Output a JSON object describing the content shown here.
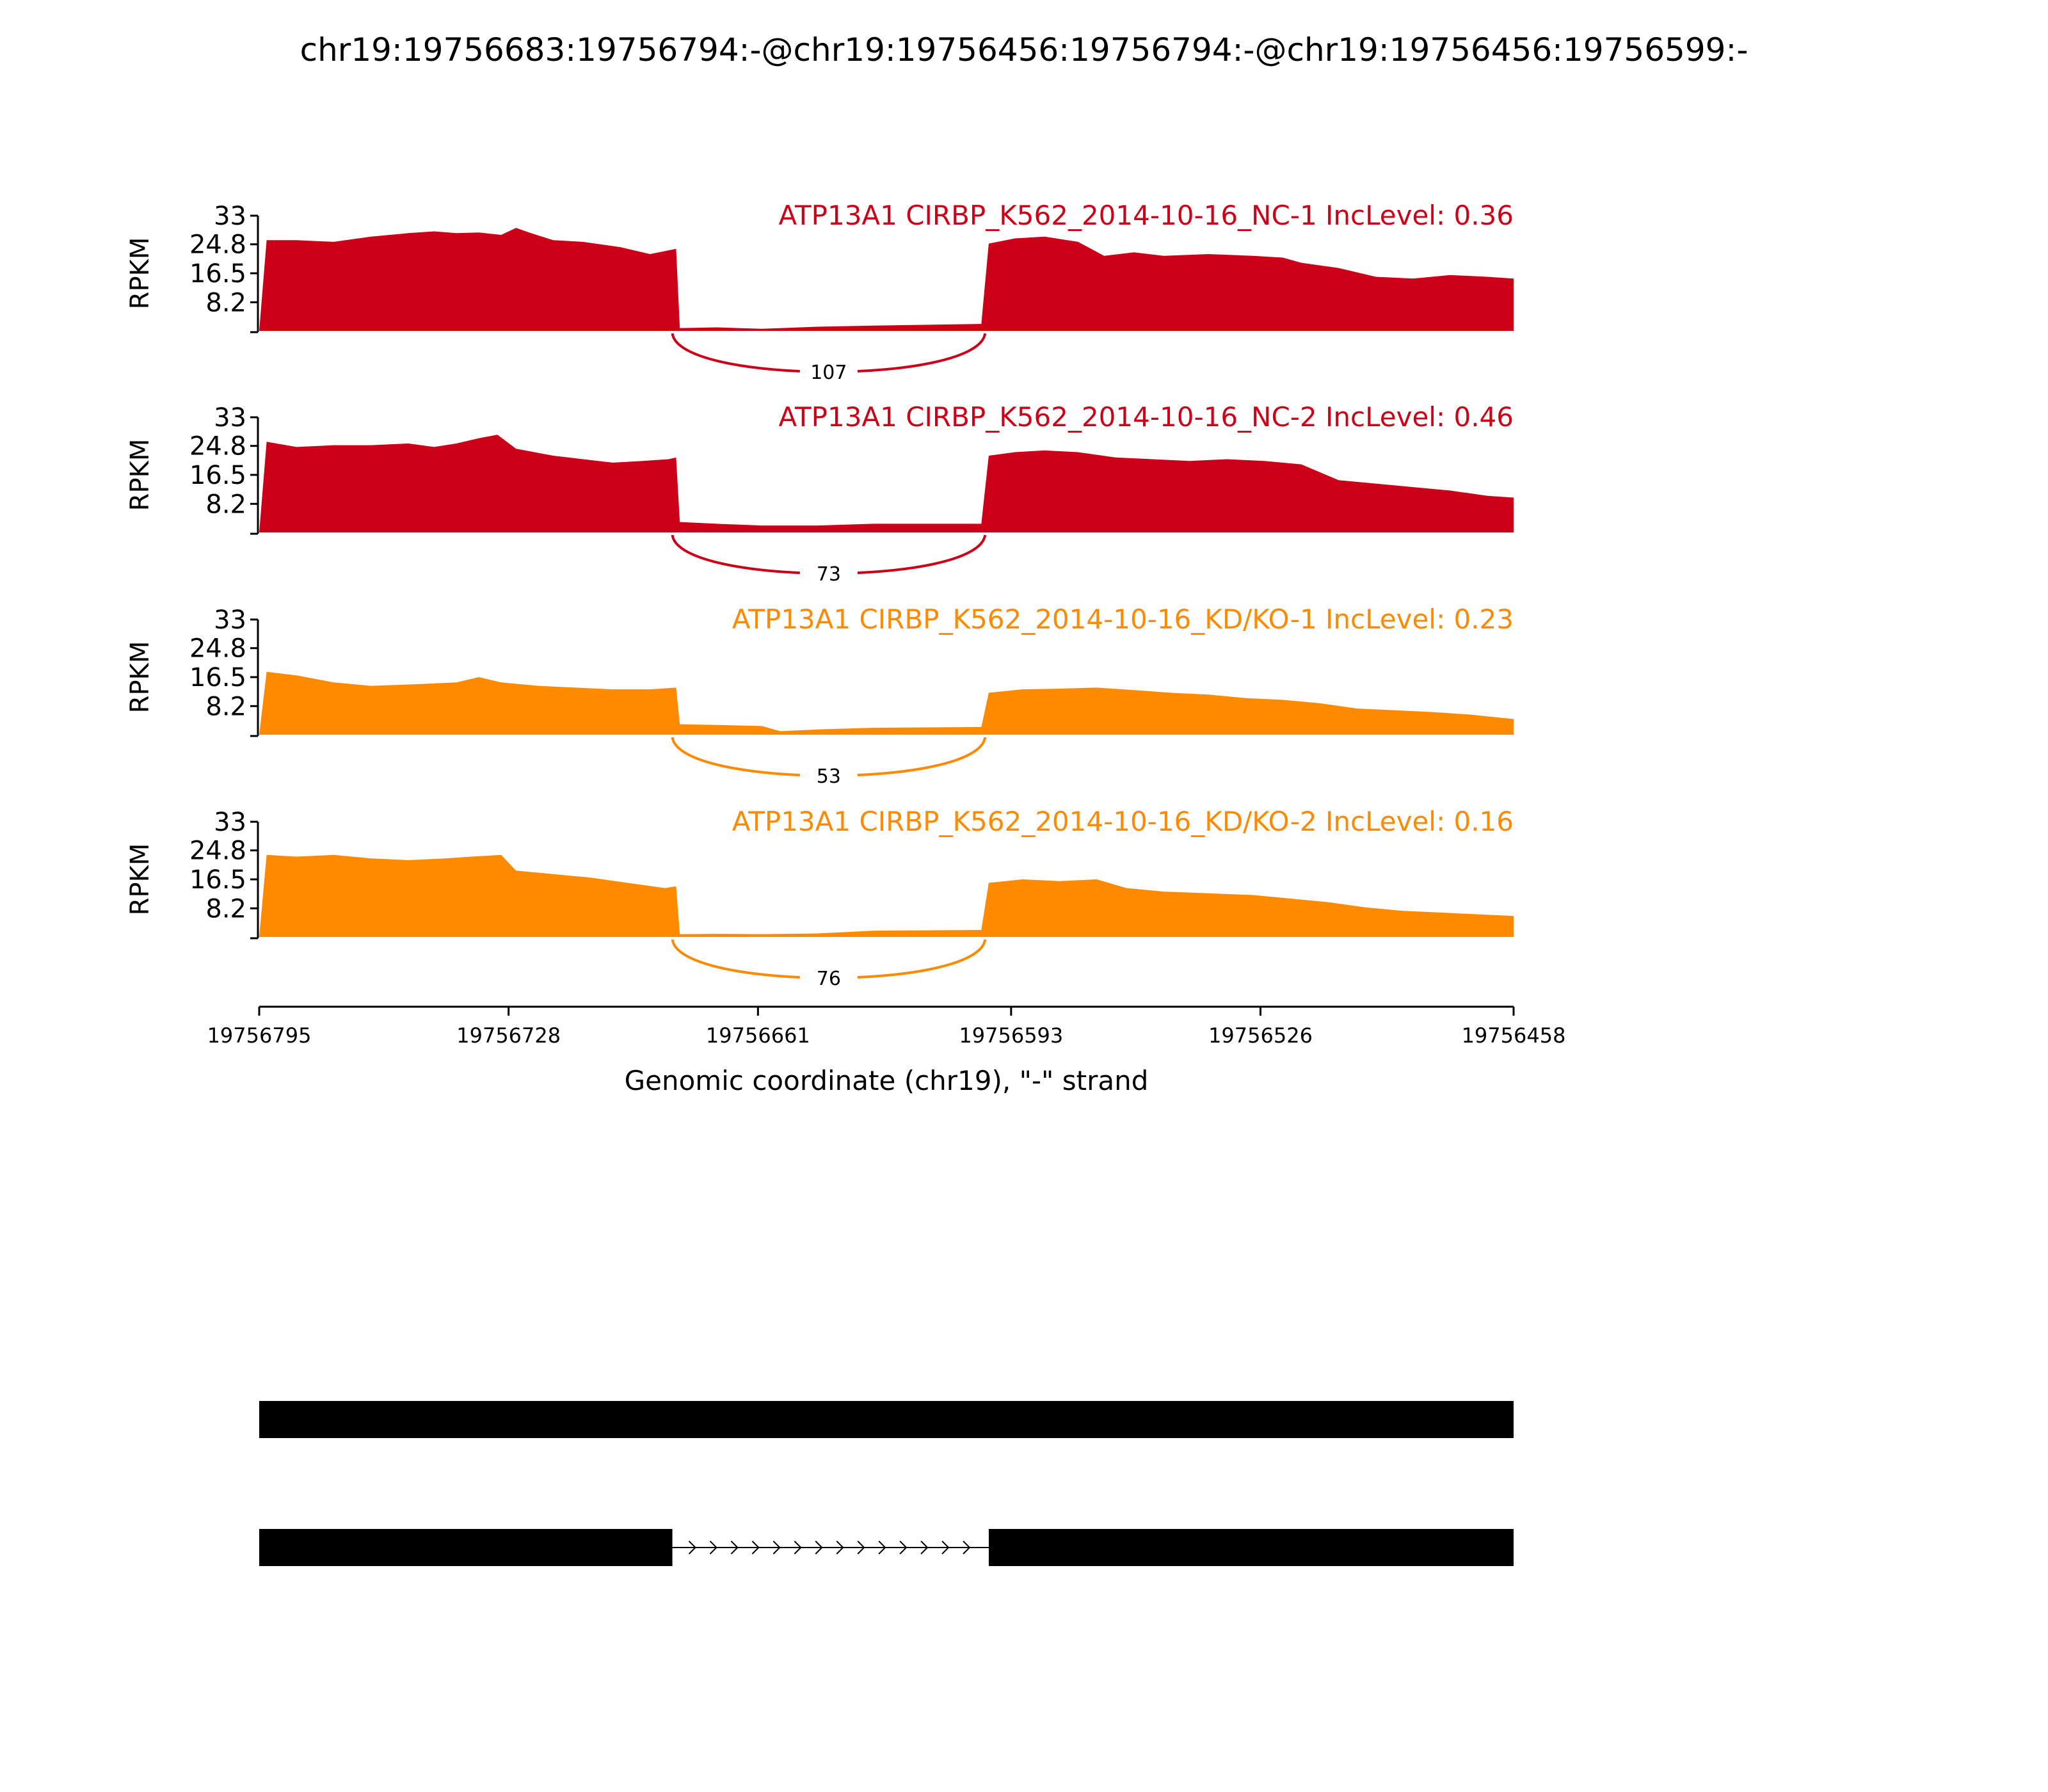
{
  "title": "chr19:19756683:19756794:-@chr19:19756456:19756794:-@chr19:19756456:19756599:-",
  "colors": {
    "nc": "#cc0018",
    "kd": "#ff8a00"
  },
  "chart_data": {
    "type": "sashimi",
    "ylabel": "RPKM",
    "yticks": [
      "8.2",
      "16.5",
      "24.8",
      "33"
    ],
    "ytick_values": [
      8.2,
      16.5,
      24.8,
      33
    ],
    "ylim": [
      0,
      33
    ],
    "xlabel": "Genomic coordinate (chr19), \"-\" strand",
    "xticks": [
      "19756795",
      "19756728",
      "19756661",
      "19756593",
      "19756526",
      "19756458"
    ],
    "xtick_values": [
      19756795,
      19756728,
      19756661,
      19756593,
      19756526,
      19756458
    ],
    "xlim": [
      19756795,
      19756458
    ],
    "tracks": [
      {
        "label": "ATP13A1 CIRBP_K562_2014-10-16_NC-1 IncLevel: 0.36",
        "color": "#cc0018",
        "junction": {
          "count": "107",
          "from": 19756684,
          "to": 19756600
        },
        "coverage": [
          [
            19756795,
            0
          ],
          [
            19756793,
            26
          ],
          [
            19756785,
            26
          ],
          [
            19756775,
            25.5
          ],
          [
            19756765,
            27
          ],
          [
            19756755,
            28
          ],
          [
            19756748,
            28.5
          ],
          [
            19756742,
            28
          ],
          [
            19756736,
            28.2
          ],
          [
            19756730,
            27.5
          ],
          [
            19756726,
            29.5
          ],
          [
            19756722,
            28
          ],
          [
            19756716,
            26
          ],
          [
            19756708,
            25.5
          ],
          [
            19756698,
            24
          ],
          [
            19756690,
            22
          ],
          [
            19756683,
            23.5
          ],
          [
            19756682,
            0.8
          ],
          [
            19756672,
            1
          ],
          [
            19756660,
            0.6
          ],
          [
            19756645,
            1.2
          ],
          [
            19756630,
            1.5
          ],
          [
            19756601,
            2
          ],
          [
            19756599,
            25
          ],
          [
            19756592,
            26.5
          ],
          [
            19756584,
            27
          ],
          [
            19756575,
            25.5
          ],
          [
            19756568,
            21.5
          ],
          [
            19756560,
            22.5
          ],
          [
            19756552,
            21.5
          ],
          [
            19756540,
            22
          ],
          [
            19756528,
            21.5
          ],
          [
            19756520,
            21
          ],
          [
            19756515,
            19.5
          ],
          [
            19756505,
            18
          ],
          [
            19756495,
            15.5
          ],
          [
            19756485,
            15
          ],
          [
            19756475,
            16
          ],
          [
            19756465,
            15.5
          ],
          [
            19756458,
            15
          ]
        ]
      },
      {
        "label": "ATP13A1 CIRBP_K562_2014-10-16_NC-2 IncLevel: 0.46",
        "color": "#cc0018",
        "junction": {
          "count": "73",
          "from": 19756684,
          "to": 19756600
        },
        "coverage": [
          [
            19756795,
            0
          ],
          [
            19756793,
            26
          ],
          [
            19756785,
            24.5
          ],
          [
            19756775,
            25
          ],
          [
            19756765,
            25
          ],
          [
            19756755,
            25.5
          ],
          [
            19756748,
            24.5
          ],
          [
            19756742,
            25.5
          ],
          [
            19756736,
            27
          ],
          [
            19756731,
            28
          ],
          [
            19756726,
            24
          ],
          [
            19756716,
            22
          ],
          [
            19756708,
            21
          ],
          [
            19756700,
            20
          ],
          [
            19756692,
            20.5
          ],
          [
            19756685,
            21
          ],
          [
            19756683,
            21.5
          ],
          [
            19756682,
            3
          ],
          [
            19756672,
            2.5
          ],
          [
            19756660,
            2
          ],
          [
            19756645,
            2
          ],
          [
            19756630,
            2.5
          ],
          [
            19756601,
            2.5
          ],
          [
            19756599,
            22
          ],
          [
            19756592,
            23
          ],
          [
            19756584,
            23.5
          ],
          [
            19756575,
            23
          ],
          [
            19756565,
            21.5
          ],
          [
            19756555,
            21
          ],
          [
            19756545,
            20.5
          ],
          [
            19756535,
            21
          ],
          [
            19756525,
            20.5
          ],
          [
            19756515,
            19.5
          ],
          [
            19756505,
            15
          ],
          [
            19756495,
            14
          ],
          [
            19756485,
            13
          ],
          [
            19756475,
            12
          ],
          [
            19756465,
            10.5
          ],
          [
            19756458,
            10
          ]
        ]
      },
      {
        "label": "ATP13A1 CIRBP_K562_2014-10-16_KD/KO-1 IncLevel: 0.23",
        "color": "#ff8a00",
        "junction": {
          "count": "53",
          "from": 19756684,
          "to": 19756600
        },
        "coverage": [
          [
            19756795,
            0
          ],
          [
            19756793,
            18
          ],
          [
            19756785,
            17
          ],
          [
            19756775,
            15
          ],
          [
            19756765,
            14
          ],
          [
            19756752,
            14.5
          ],
          [
            19756742,
            15
          ],
          [
            19756736,
            16.5
          ],
          [
            19756730,
            15
          ],
          [
            19756720,
            14
          ],
          [
            19756710,
            13.5
          ],
          [
            19756700,
            13
          ],
          [
            19756690,
            13
          ],
          [
            19756683,
            13.5
          ],
          [
            19756682,
            3
          ],
          [
            19756672,
            2.8
          ],
          [
            19756660,
            2.5
          ],
          [
            19756655,
            1
          ],
          [
            19756645,
            1.5
          ],
          [
            19756630,
            2
          ],
          [
            19756601,
            2.2
          ],
          [
            19756599,
            12
          ],
          [
            19756590,
            13
          ],
          [
            19756580,
            13.2
          ],
          [
            19756570,
            13.5
          ],
          [
            19756560,
            12.8
          ],
          [
            19756550,
            12
          ],
          [
            19756540,
            11.5
          ],
          [
            19756530,
            10.5
          ],
          [
            19756520,
            10
          ],
          [
            19756510,
            9
          ],
          [
            19756500,
            7.5
          ],
          [
            19756490,
            7
          ],
          [
            19756480,
            6.5
          ],
          [
            19756470,
            5.8
          ],
          [
            19756458,
            4.5
          ]
        ]
      },
      {
        "label": "ATP13A1 CIRBP_K562_2014-10-16_KD/KO-2 IncLevel: 0.16",
        "color": "#ff8a00",
        "junction": {
          "count": "76",
          "from": 19756684,
          "to": 19756600
        },
        "coverage": [
          [
            19756795,
            0
          ],
          [
            19756793,
            23.5
          ],
          [
            19756785,
            23
          ],
          [
            19756775,
            23.5
          ],
          [
            19756765,
            22.5
          ],
          [
            19756755,
            22
          ],
          [
            19756745,
            22.5
          ],
          [
            19756738,
            23
          ],
          [
            19756730,
            23.5
          ],
          [
            19756726,
            19
          ],
          [
            19756716,
            18
          ],
          [
            19756706,
            17
          ],
          [
            19756696,
            15.5
          ],
          [
            19756686,
            14
          ],
          [
            19756683,
            14.5
          ],
          [
            19756682,
            0.8
          ],
          [
            19756672,
            0.9
          ],
          [
            19756660,
            0.8
          ],
          [
            19756645,
            1
          ],
          [
            19756630,
            1.8
          ],
          [
            19756601,
            2
          ],
          [
            19756599,
            15.5
          ],
          [
            19756590,
            16.5
          ],
          [
            19756580,
            16
          ],
          [
            19756570,
            16.5
          ],
          [
            19756562,
            14
          ],
          [
            19756552,
            13
          ],
          [
            19756540,
            12.5
          ],
          [
            19756528,
            12
          ],
          [
            19756518,
            11
          ],
          [
            19756508,
            10
          ],
          [
            19756498,
            8.5
          ],
          [
            19756488,
            7.5
          ],
          [
            19756478,
            7
          ],
          [
            19756468,
            6.5
          ],
          [
            19756458,
            6
          ]
        ]
      }
    ],
    "isoforms": [
      {
        "exons": [
          [
            19756795,
            19756458
          ]
        ]
      },
      {
        "exons": [
          [
            19756795,
            19756684
          ],
          [
            19756599,
            19756458
          ]
        ]
      }
    ]
  }
}
